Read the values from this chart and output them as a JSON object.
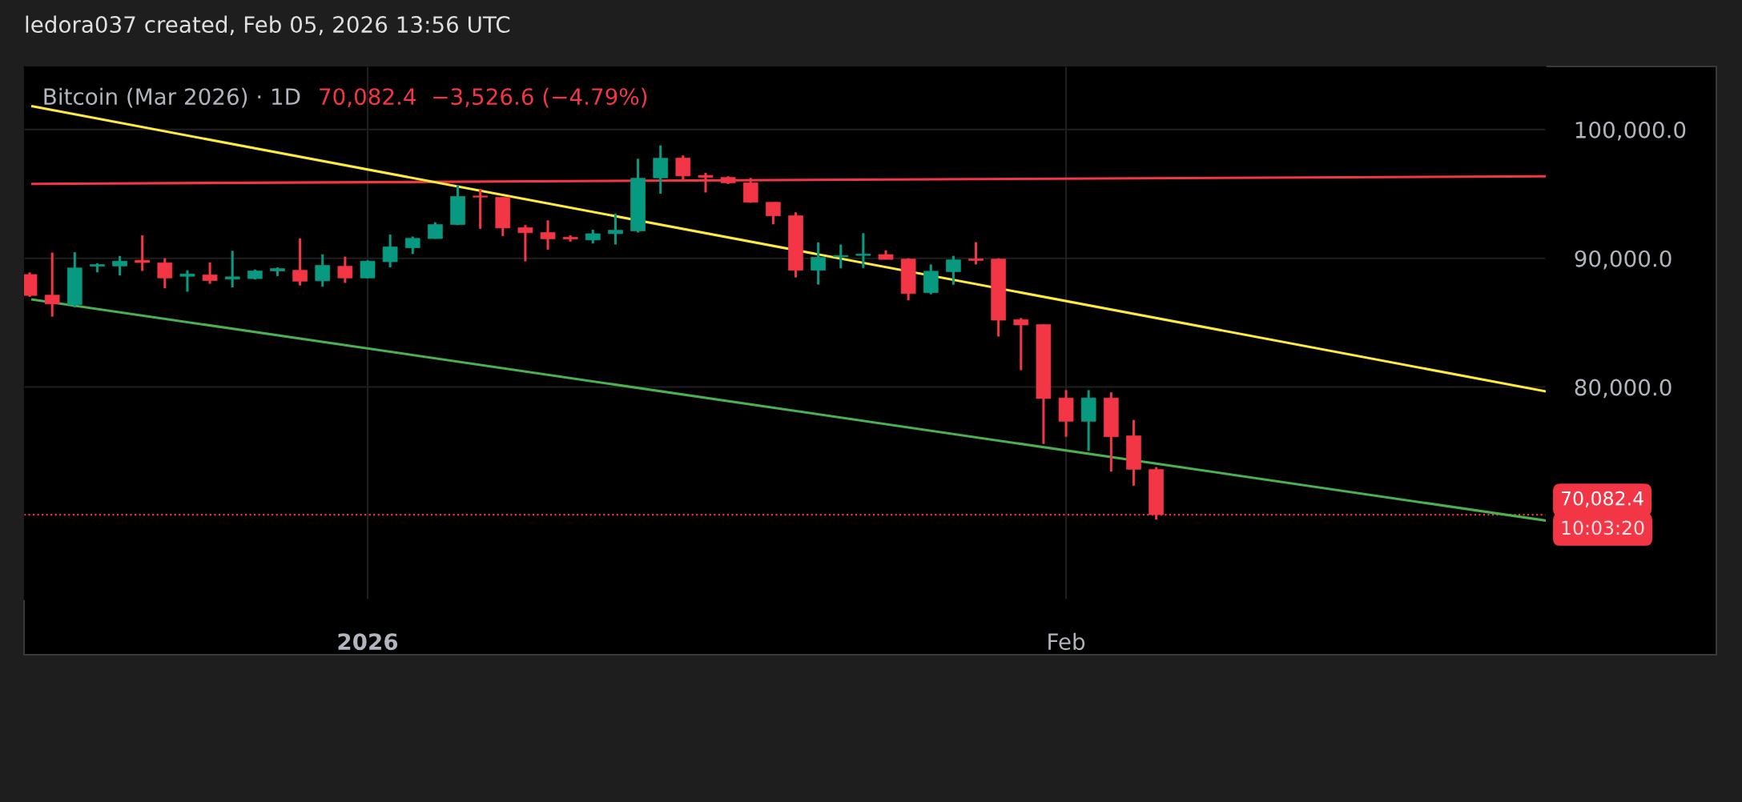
{
  "chart_data": {
    "type": "candlestick",
    "title": "Bitcoin (Mar 2026) · 1D",
    "subtitle": "70,082.4  −3,526.6 (−4.79%)",
    "annotations": [
      "ledora037 created, Feb 05, 2026 13:56 UTC",
      "10:03:20"
    ],
    "x": [
      "2025-12-17",
      "2025-12-18",
      "2025-12-19",
      "2025-12-20",
      "2025-12-21",
      "2025-12-22",
      "2025-12-23",
      "2025-12-24",
      "2025-12-25",
      "2025-12-26",
      "2025-12-27",
      "2025-12-28",
      "2025-12-29",
      "2025-12-30",
      "2025-12-31",
      "2026-01-01",
      "2026-01-02",
      "2026-01-03",
      "2026-01-04",
      "2026-01-05",
      "2026-01-06",
      "2026-01-07",
      "2026-01-08",
      "2026-01-09",
      "2026-01-10",
      "2026-01-11",
      "2026-01-12",
      "2026-01-13",
      "2026-01-14",
      "2026-01-15",
      "2026-01-16",
      "2026-01-17",
      "2026-01-18",
      "2026-01-19",
      "2026-01-20",
      "2026-01-21",
      "2026-01-22",
      "2026-01-23",
      "2026-01-24",
      "2026-01-25",
      "2026-01-26",
      "2026-01-27",
      "2026-01-28",
      "2026-01-29",
      "2026-01-30",
      "2026-01-31",
      "2026-02-01",
      "2026-02-02",
      "2026-02-03",
      "2026-02-04",
      "2026-02-05"
    ],
    "series": [
      {
        "type": "line",
        "color": "#f23645",
        "x": [
          "2025-12-17T03:00",
          "2026-02-22T07:00"
        ],
        "values": [
          95780,
          96370
        ]
      },
      {
        "type": "line",
        "color": "#ffeb3b",
        "x": [
          "2025-12-17T03:00",
          "2026-02-22T07:00"
        ],
        "values": [
          101800,
          79660
        ]
      },
      {
        "type": "line",
        "color": "#4caf50",
        "x": [
          "2025-12-17T03:00",
          "2026-02-22T07:00"
        ],
        "values": [
          86800,
          69630
        ]
      },
      {
        "ohlc": [
          [
            88740,
            88900,
            87000,
            87110
          ],
          [
            87140,
            90440,
            85470,
            86450
          ],
          [
            86400,
            90470,
            86180,
            89250
          ],
          [
            89380,
            89620,
            88910,
            89510
          ],
          [
            89400,
            90180,
            88670,
            89780
          ],
          [
            89850,
            91780,
            89020,
            89670
          ],
          [
            89650,
            90000,
            87670,
            88470
          ],
          [
            88600,
            89070,
            87400,
            88780
          ],
          [
            88710,
            89670,
            88020,
            88270
          ],
          [
            88380,
            90580,
            87740,
            88560
          ],
          [
            88420,
            89130,
            88360,
            89020
          ],
          [
            89020,
            89290,
            88620,
            89200
          ],
          [
            89070,
            91550,
            87890,
            88220
          ],
          [
            88250,
            90310,
            87800,
            89450
          ],
          [
            89380,
            90130,
            88090,
            88470
          ],
          [
            88470,
            89850,
            88450,
            89780
          ],
          [
            89730,
            91840,
            89290,
            90890
          ],
          [
            90820,
            91690,
            90330,
            91550
          ],
          [
            91530,
            92800,
            91510,
            92620
          ],
          [
            92620,
            95680,
            92580,
            94800
          ],
          [
            94840,
            95390,
            92290,
            94750
          ],
          [
            94730,
            94730,
            91730,
            92350
          ],
          [
            92380,
            92580,
            89760,
            91980
          ],
          [
            92000,
            92950,
            90670,
            91510
          ],
          [
            91640,
            91780,
            91290,
            91490
          ],
          [
            91420,
            92220,
            91150,
            91910
          ],
          [
            91910,
            93460,
            91070,
            92180
          ],
          [
            92130,
            97730,
            92000,
            96220
          ],
          [
            96240,
            98770,
            95010,
            97770
          ],
          [
            97790,
            97990,
            95950,
            96390
          ],
          [
            96440,
            96640,
            95110,
            96280
          ],
          [
            96280,
            96370,
            95770,
            95860
          ],
          [
            95860,
            96240,
            94310,
            94350
          ],
          [
            94350,
            94350,
            92640,
            93290
          ],
          [
            93310,
            93570,
            88510,
            89070
          ],
          [
            89070,
            91240,
            87960,
            90070
          ],
          [
            90110,
            91070,
            89220,
            90220
          ],
          [
            90220,
            91950,
            89250,
            90330
          ],
          [
            90290,
            90620,
            89910,
            89910
          ],
          [
            89940,
            90000,
            86740,
            87260
          ],
          [
            87330,
            89520,
            87200,
            89000
          ],
          [
            88960,
            90190,
            87950,
            89880
          ],
          [
            89960,
            91250,
            89520,
            89830
          ],
          [
            89940,
            90000,
            83920,
            85190
          ],
          [
            85240,
            85360,
            81310,
            84820
          ],
          [
            84860,
            84860,
            75580,
            79110
          ],
          [
            79150,
            79760,
            76140,
            77340
          ],
          [
            77340,
            79760,
            75040,
            79150
          ],
          [
            79150,
            79590,
            73430,
            76140
          ],
          [
            76210,
            77440,
            72340,
            73609
          ],
          [
            73609,
            73780,
            69710,
            70082.4
          ]
        ],
        "colors": [
          "#f23645",
          "#f23645",
          "#089981",
          "#089981",
          "#089981",
          "#f23645",
          "#f23645",
          "#089981",
          "#f23645",
          "#089981",
          "#089981",
          "#089981",
          "#f23645",
          "#089981",
          "#f23645",
          "#089981",
          "#089981",
          "#089981",
          "#089981",
          "#089981",
          "#f23645",
          "#f23645",
          "#f23645",
          "#f23645",
          "#f23645",
          "#089981",
          "#089981",
          "#089981",
          "#089981",
          "#f23645",
          "#f23645",
          "#f23645",
          "#f23645",
          "#f23645",
          "#f23645",
          "#089981",
          "#089981",
          "#089981",
          "#f23645",
          "#f23645",
          "#089981",
          "#089981",
          "#f23645",
          "#f23645",
          "#f23645",
          "#f23645",
          "#f23645",
          "#089981",
          "#f23645",
          "#f23645",
          "#f23645"
        ]
      }
    ],
    "ref_lines": [
      {
        "axis": "y",
        "value": 70082.4,
        "label": "70,082.4",
        "color": "#f23645",
        "line_style": "dotted"
      }
    ],
    "xlim": [
      "2025-12-16T18:00",
      "2026-02-22T07:00"
    ],
    "xticks": [
      {
        "value": "2026-01-01",
        "label": "2026"
      },
      {
        "value": "2026-02-01",
        "label": "Feb"
      }
    ],
    "ylim": [
      63500,
      104900
    ],
    "yticks": [
      {
        "value": 80000,
        "label": "80,000.0"
      },
      {
        "value": 90000,
        "label": "90,000.0"
      },
      {
        "value": 100000,
        "label": "100,000.0"
      }
    ],
    "grid": true,
    "legend": false
  }
}
